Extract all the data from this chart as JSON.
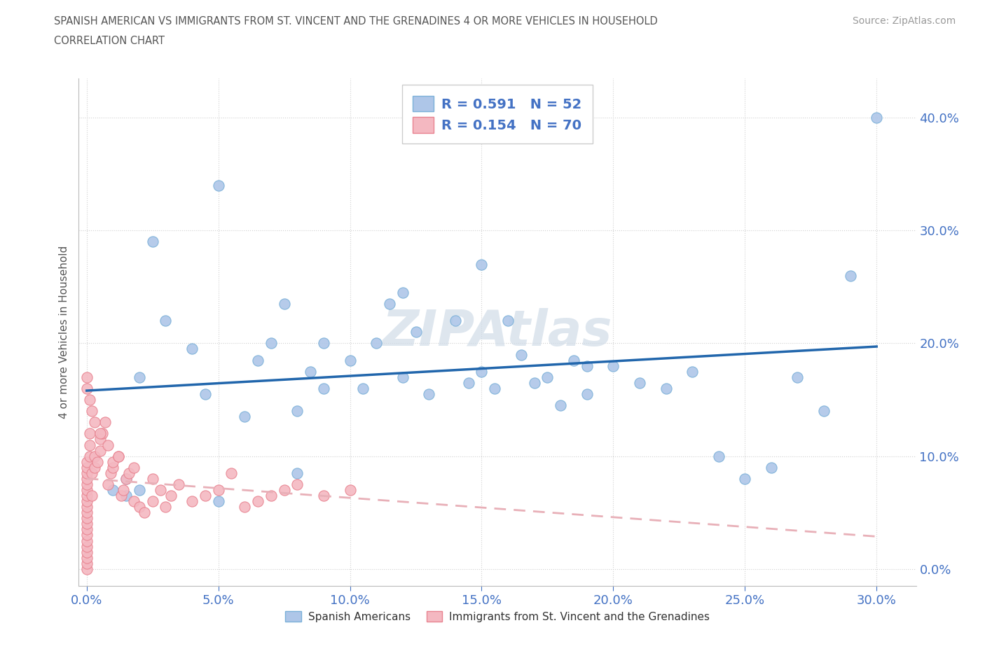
{
  "title_line1": "SPANISH AMERICAN VS IMMIGRANTS FROM ST. VINCENT AND THE GRENADINES 4 OR MORE VEHICLES IN HOUSEHOLD",
  "title_line2": "CORRELATION CHART",
  "source": "Source: ZipAtlas.com",
  "xlabel_ticks": [
    0.0,
    0.05,
    0.1,
    0.15,
    0.2,
    0.25,
    0.3
  ],
  "ylabel_ticks": [
    0.0,
    0.1,
    0.2,
    0.3,
    0.4
  ],
  "xlim": [
    -0.003,
    0.315
  ],
  "ylim": [
    -0.015,
    0.435
  ],
  "R_blue": 0.591,
  "N_blue": 52,
  "R_pink": 0.154,
  "N_pink": 70,
  "blue_scatter_color": "#aec6e8",
  "blue_edge_color": "#7ab0d8",
  "pink_scatter_color": "#f4b8c1",
  "pink_edge_color": "#e8828f",
  "line_blue": "#2166ac",
  "line_pink": "#e8b0b8",
  "watermark_color": "#d0dce8",
  "legend_label_blue": "Spanish Americans",
  "legend_label_pink": "Immigrants from St. Vincent and the Grenadines",
  "blue_x": [
    0.015,
    0.02,
    0.025,
    0.03,
    0.04,
    0.045,
    0.05,
    0.06,
    0.065,
    0.07,
    0.075,
    0.08,
    0.085,
    0.09,
    0.1,
    0.105,
    0.11,
    0.115,
    0.12,
    0.125,
    0.13,
    0.14,
    0.145,
    0.15,
    0.155,
    0.16,
    0.165,
    0.17,
    0.175,
    0.18,
    0.185,
    0.19,
    0.2,
    0.21,
    0.22,
    0.23,
    0.24,
    0.25,
    0.26,
    0.27,
    0.28,
    0.29,
    0.3,
    0.01,
    0.015,
    0.02,
    0.05,
    0.08,
    0.09,
    0.12,
    0.15,
    0.19
  ],
  "blue_y": [
    0.08,
    0.07,
    0.29,
    0.22,
    0.195,
    0.155,
    0.06,
    0.135,
    0.185,
    0.2,
    0.235,
    0.14,
    0.175,
    0.2,
    0.185,
    0.16,
    0.2,
    0.235,
    0.245,
    0.21,
    0.155,
    0.22,
    0.165,
    0.175,
    0.16,
    0.22,
    0.19,
    0.165,
    0.17,
    0.145,
    0.185,
    0.155,
    0.18,
    0.165,
    0.16,
    0.175,
    0.1,
    0.08,
    0.09,
    0.17,
    0.14,
    0.26,
    0.4,
    0.07,
    0.065,
    0.17,
    0.34,
    0.085,
    0.16,
    0.17,
    0.27,
    0.18
  ],
  "pink_x": [
    0.0,
    0.0,
    0.0,
    0.0,
    0.0,
    0.0,
    0.0,
    0.0,
    0.0,
    0.0,
    0.0,
    0.0,
    0.0,
    0.0,
    0.0,
    0.0,
    0.0,
    0.0,
    0.0,
    0.0,
    0.001,
    0.001,
    0.001,
    0.002,
    0.002,
    0.003,
    0.003,
    0.004,
    0.005,
    0.005,
    0.006,
    0.007,
    0.008,
    0.009,
    0.01,
    0.01,
    0.012,
    0.013,
    0.014,
    0.015,
    0.016,
    0.018,
    0.02,
    0.022,
    0.025,
    0.028,
    0.03,
    0.032,
    0.035,
    0.04,
    0.045,
    0.05,
    0.055,
    0.06,
    0.065,
    0.07,
    0.075,
    0.08,
    0.09,
    0.1,
    0.0,
    0.0,
    0.001,
    0.002,
    0.003,
    0.005,
    0.008,
    0.012,
    0.018,
    0.025
  ],
  "pink_y": [
    0.0,
    0.005,
    0.01,
    0.015,
    0.02,
    0.025,
    0.03,
    0.035,
    0.04,
    0.045,
    0.05,
    0.055,
    0.06,
    0.065,
    0.07,
    0.075,
    0.08,
    0.085,
    0.09,
    0.095,
    0.1,
    0.11,
    0.12,
    0.065,
    0.085,
    0.09,
    0.1,
    0.095,
    0.105,
    0.115,
    0.12,
    0.13,
    0.075,
    0.085,
    0.09,
    0.095,
    0.1,
    0.065,
    0.07,
    0.08,
    0.085,
    0.06,
    0.055,
    0.05,
    0.06,
    0.07,
    0.055,
    0.065,
    0.075,
    0.06,
    0.065,
    0.07,
    0.085,
    0.055,
    0.06,
    0.065,
    0.07,
    0.075,
    0.065,
    0.07,
    0.16,
    0.17,
    0.15,
    0.14,
    0.13,
    0.12,
    0.11,
    0.1,
    0.09,
    0.08
  ]
}
